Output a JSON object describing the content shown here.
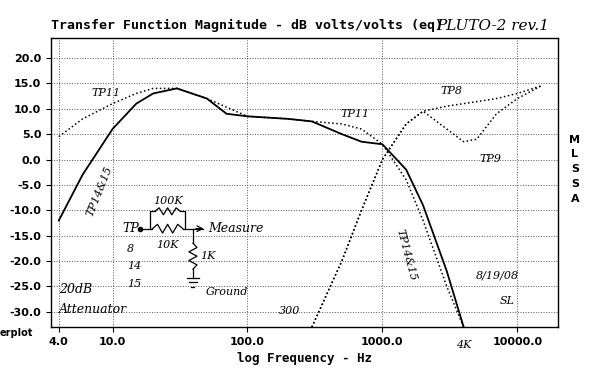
{
  "chart_data": {
    "type": "line",
    "title": "Transfer Function Magnitude - dB volts/volts (eq)",
    "x_label": "log Frequency - Hz",
    "log": "x",
    "grid": true,
    "xlim": [
      3.5,
      20000
    ],
    "ylim": [
      -33,
      24
    ],
    "xticks": [
      {
        "value": 4,
        "label": "4.0"
      },
      {
        "value": 10,
        "label": "10.0"
      },
      {
        "value": 100,
        "label": "100.0"
      },
      {
        "value": 1000,
        "label": "1000.0"
      },
      {
        "value": 10000,
        "label": "10000.0"
      }
    ],
    "yticks": [
      {
        "value": 20,
        "label": "20.0"
      },
      {
        "value": 15,
        "label": "15.0"
      },
      {
        "value": 10,
        "label": "10.0"
      },
      {
        "value": 5,
        "label": "5.0"
      },
      {
        "value": 0,
        "label": "0.0"
      },
      {
        "value": -5,
        "label": "-5.0"
      },
      {
        "value": -10,
        "label": "-10.0"
      },
      {
        "value": -15,
        "label": "-15.0"
      },
      {
        "value": -20,
        "label": "-20.0"
      },
      {
        "value": -25,
        "label": "-25.0"
      },
      {
        "value": -30,
        "label": "-30.0"
      }
    ],
    "series": [
      {
        "name": "TP14&15",
        "color": "#000000",
        "line_style": "solid",
        "x": [
          4,
          6,
          10,
          15,
          20,
          30,
          50,
          70,
          100,
          200,
          300,
          500,
          700,
          1000,
          1500,
          2000,
          3000,
          4000
        ],
        "values": [
          -12,
          -3,
          6,
          11,
          13,
          14,
          12,
          9,
          8.5,
          8,
          7.5,
          5,
          3.5,
          3,
          -2,
          -9,
          -22,
          -33
        ]
      },
      {
        "name": "TP11",
        "color": "#000000",
        "line_style": "dotted",
        "x": [
          4,
          6,
          10,
          15,
          20,
          30,
          50,
          100,
          200,
          300,
          500,
          700,
          1000,
          1500,
          2000,
          3000,
          4000
        ],
        "values": [
          4.5,
          8,
          11,
          13,
          14,
          14,
          12,
          8.5,
          8,
          7.5,
          7,
          6,
          3,
          -4,
          -12,
          -25,
          -33
        ]
      },
      {
        "name": "TP8",
        "color": "#000000",
        "line_style": "dotted",
        "x": [
          300,
          500,
          700,
          1000,
          1500,
          2000,
          3000,
          4000,
          7000,
          10000,
          15000
        ],
        "values": [
          -33,
          -20,
          -10,
          0,
          7,
          9.5,
          10.5,
          11,
          12,
          13,
          14.5
        ]
      },
      {
        "name": "TP9",
        "color": "#000000",
        "line_style": "dotted",
        "x": [
          300,
          500,
          700,
          1000,
          1500,
          2000,
          3000,
          4000,
          5000,
          7000,
          10000,
          15000
        ],
        "values": [
          -33,
          -20,
          -10,
          0,
          7,
          9.5,
          6,
          3.5,
          4,
          9,
          12,
          14.5
        ]
      }
    ],
    "annotations": [
      {
        "text": "PLUTO-2 rev.1"
      },
      {
        "text": "TP11"
      },
      {
        "text": "TP14&15"
      },
      {
        "text": "300"
      },
      {
        "text": "4K"
      },
      {
        "text": "8/19/08"
      },
      {
        "text": "SL"
      },
      {
        "text": "20dB"
      },
      {
        "text": "Attenuator"
      },
      {
        "text": "TP"
      },
      {
        "text": "8"
      },
      {
        "text": "14"
      },
      {
        "text": "15"
      },
      {
        "text": "100K"
      },
      {
        "text": "10K"
      },
      {
        "text": "1K"
      },
      {
        "text": "Measure"
      },
      {
        "text": "Ground"
      },
      {
        "text": "MLSSA"
      },
      {
        "text": "erplot"
      }
    ]
  }
}
